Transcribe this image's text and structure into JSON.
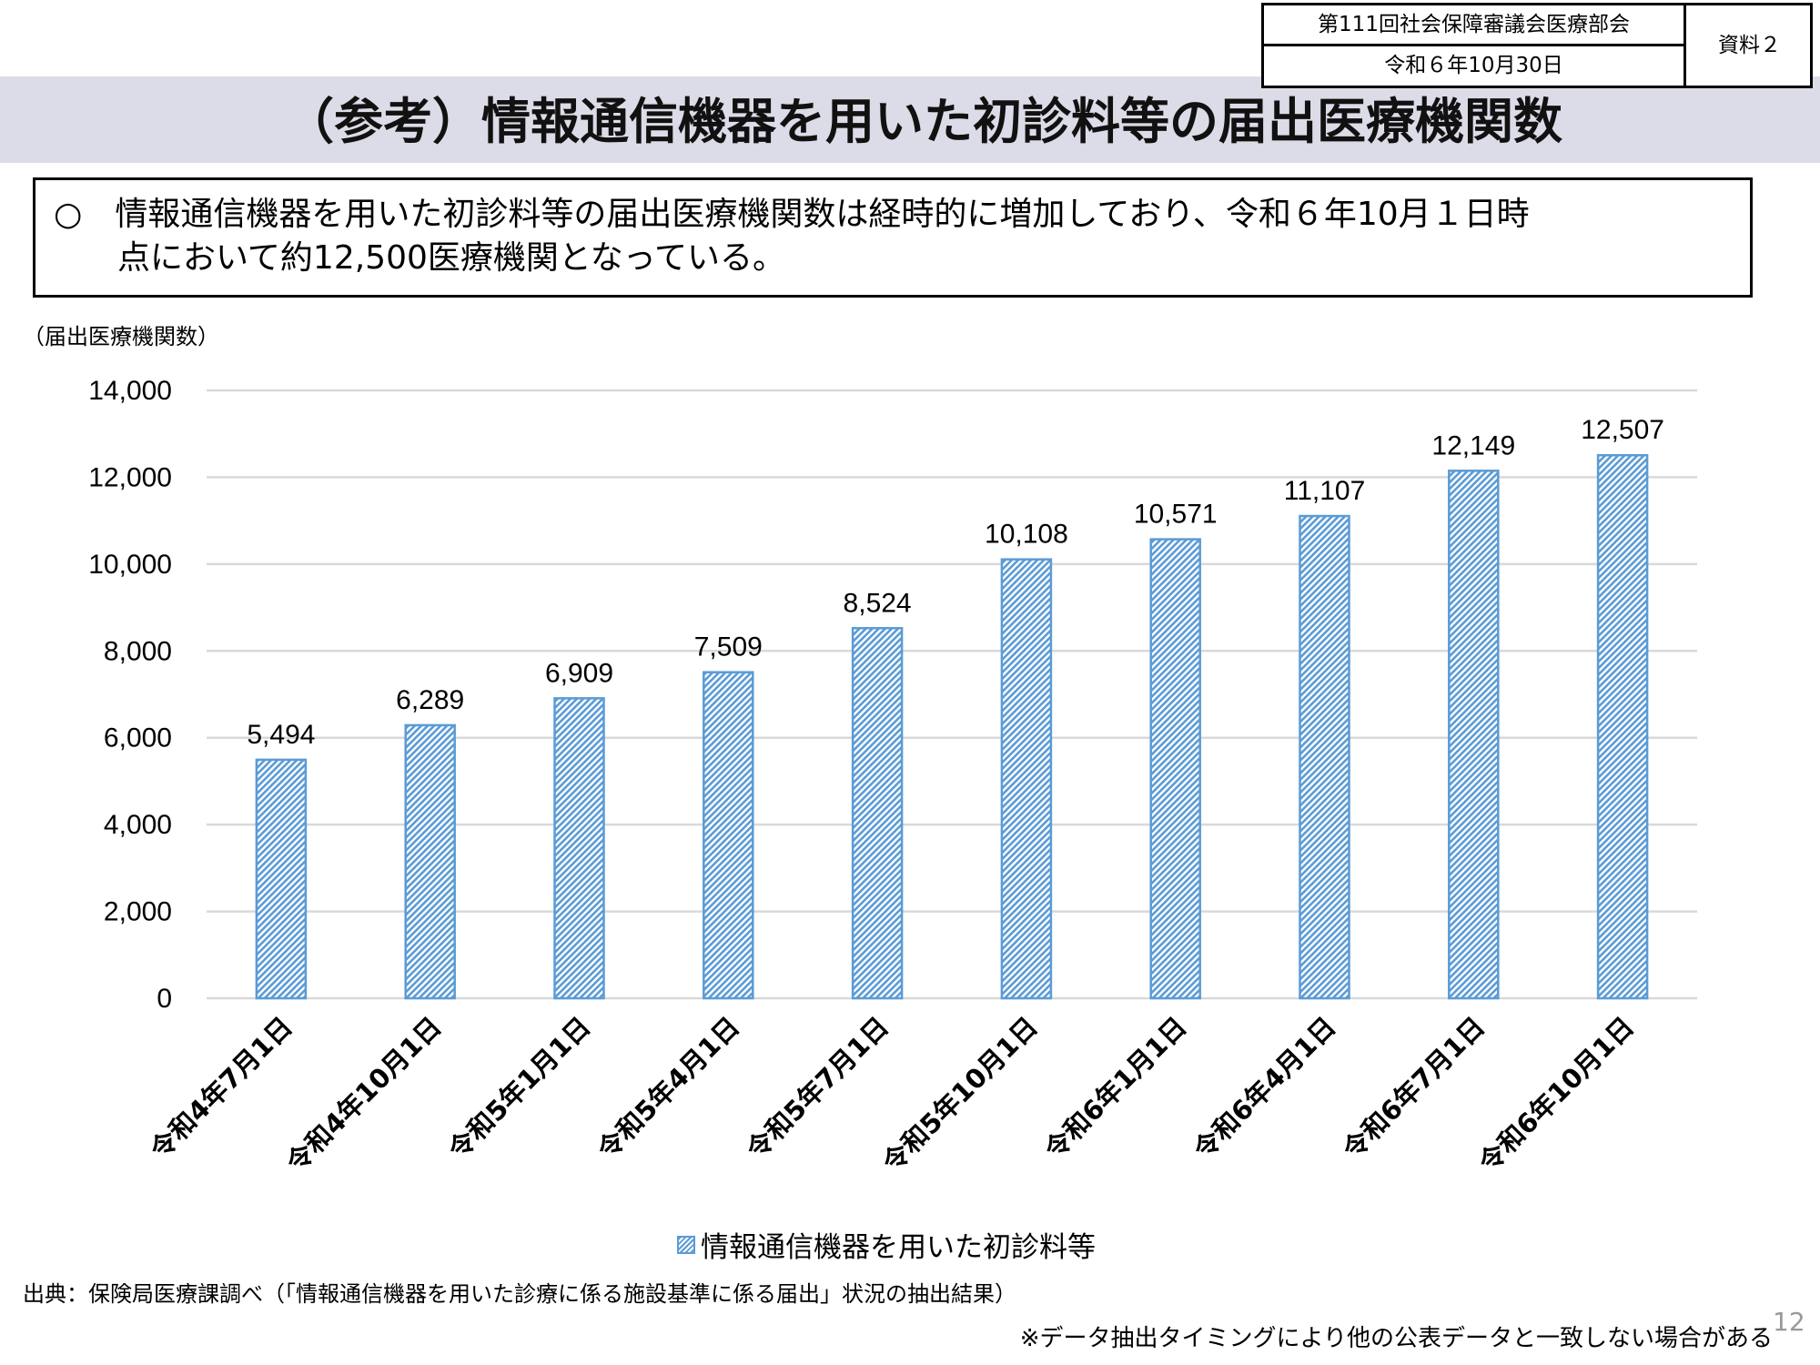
{
  "header": {
    "meeting": "第111回社会保障審議会医療部会",
    "date": "令和６年10月30日",
    "doc_label": "資料２"
  },
  "title": "（参考）情報通信機器を用いた初診料等の届出医療機関数",
  "summary": {
    "line1": "○　情報通信機器を用いた初診料等の届出医療機関数は経時的に増加しており、令和６年10月１日時",
    "line2": "点において約12,500医療機関となっている。"
  },
  "chart_data": {
    "type": "bar",
    "ylabel": "（届出医療機関数）",
    "categories": [
      "令和4年7月1日",
      "令和4年10月1日",
      "令和5年1月1日",
      "令和5年4月1日",
      "令和5年7月1日",
      "令和5年10月1日",
      "令和6年1月1日",
      "令和6年4月1日",
      "令和6年7月1日",
      "令和6年10月1日"
    ],
    "series": [
      {
        "name": "情報通信機器を用いた初診料等",
        "values": [
          5494,
          6289,
          6909,
          7509,
          8524,
          10108,
          10571,
          11107,
          12149,
          12507
        ]
      }
    ],
    "data_labels": [
      "5,494",
      "6,289",
      "6,909",
      "7,509",
      "8,524",
      "10,108",
      "10,571",
      "11,107",
      "12,149",
      "12,507"
    ],
    "yticks": [
      "0",
      "2,000",
      "4,000",
      "6,000",
      "8,000",
      "10,000",
      "12,000",
      "14,000"
    ],
    "ylim": [
      0,
      14000
    ],
    "grid": true,
    "legend_position": "bottom",
    "bar_color": "#5b9bd5",
    "bar_fill": "diagonal-hatch"
  },
  "source": "出典：保険局医療課調べ（「情報通信機器を用いた診療に係る施設基準に係る届出」状況の抽出結果）",
  "note": "※データ抽出タイミングにより他の公表データと一致しない場合がある",
  "page_number": "12"
}
